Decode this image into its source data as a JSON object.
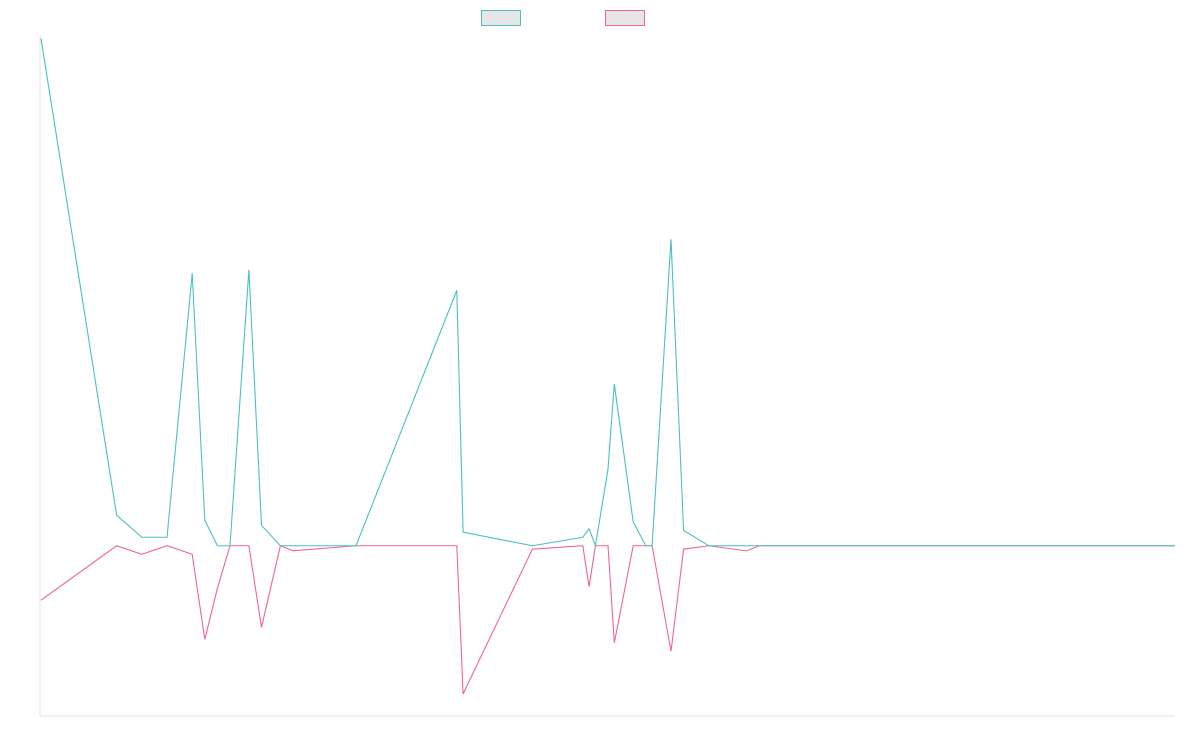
{
  "chart_data": {
    "type": "line",
    "title": "",
    "xlabel": "",
    "ylabel": "",
    "grid": false,
    "legend": {
      "position": "top-center",
      "entries": [
        "",
        ""
      ]
    },
    "x": [
      0,
      60,
      80,
      100,
      120,
      130,
      140,
      150,
      165,
      175,
      190,
      200,
      250,
      330,
      335,
      390,
      430,
      435,
      440,
      450,
      455,
      470,
      480,
      485,
      500,
      510,
      530,
      560,
      570,
      600,
      630,
      650,
      670,
      685,
      735,
      755,
      790,
      795,
      810,
      820,
      820.2,
      830,
      880,
      885,
      900
    ],
    "ylim": [
      -100,
      300
    ],
    "series": [
      {
        "name": "",
        "color": "#4bbfc0",
        "values": [
          298,
          18,
          5,
          5,
          160,
          15,
          0,
          0,
          162,
          12,
          0,
          0,
          0,
          150,
          8,
          0,
          5,
          10,
          0,
          45,
          95,
          14,
          0,
          0,
          180,
          9,
          0,
          0,
          0,
          0,
          0,
          0,
          0,
          0,
          0,
          0,
          0,
          0,
          0,
          0,
          0,
          0,
          0,
          0,
          0
        ]
      },
      {
        "name": "",
        "color": "#f0658e",
        "values": [
          -32,
          0,
          -5,
          0,
          -5,
          -55,
          -25,
          0,
          0,
          -48,
          0,
          -3,
          0,
          0,
          -87,
          -2,
          0,
          -24,
          0,
          0,
          -57,
          0,
          0,
          0,
          -62,
          -2,
          0,
          -3,
          0,
          0,
          0,
          0,
          0,
          0,
          0,
          0,
          0,
          0,
          0,
          0,
          0,
          0,
          0,
          0,
          0
        ]
      }
    ]
  }
}
